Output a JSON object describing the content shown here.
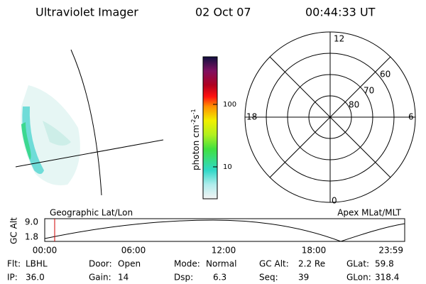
{
  "header": {
    "title": "Ultraviolet Imager",
    "date": "02 Oct 07",
    "time": "00:44:33 UT"
  },
  "colorbar": {
    "unit": "photon cm",
    "exp1": "-2",
    "unit2": "s",
    "exp2": "-1",
    "ticks": [
      "100",
      "10"
    ]
  },
  "polar": {
    "lat_labels": [
      "60",
      "70",
      "80"
    ],
    "mlt_labels": [
      "12",
      "18",
      "6",
      "0"
    ]
  },
  "orbit": {
    "left_label": "Geographic Lat/Lon",
    "right_label": "Apex MLat/MLT",
    "axis_label": "GC Alt",
    "y_labels": [
      "9.0",
      "1.8"
    ],
    "x_labels": [
      "00:00",
      "06:00",
      "12:00",
      "18:00",
      "23:59"
    ]
  },
  "info": [
    [
      {
        "label": "Flt:",
        "value": "LBHL"
      },
      {
        "label": "Door:",
        "value": "Open"
      },
      {
        "label": "Mode:",
        "value": "Normal"
      },
      {
        "label": "GC Alt:",
        "value": "2.2 Re"
      },
      {
        "label": "GLat:",
        "value": "59.8"
      }
    ],
    [
      {
        "label": "IP:",
        "value": "36.0"
      },
      {
        "label": "Gain:",
        "value": "14"
      },
      {
        "label": "Dsp:",
        "value": "6.3"
      },
      {
        "label": "Seq:",
        "value": "39"
      },
      {
        "label": "GLon:",
        "value": "318.4"
      }
    ]
  ]
}
